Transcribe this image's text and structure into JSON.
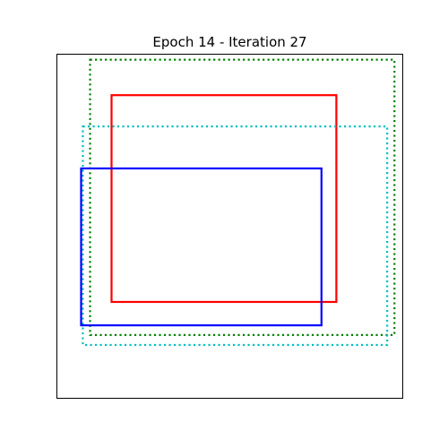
{
  "chart_data": {
    "type": "rectangles",
    "title": "Epoch 14 - Iteration 27",
    "xlabel": "",
    "ylabel": "",
    "xlim": [
      0,
      1
    ],
    "ylim": [
      0,
      1
    ],
    "grid": false,
    "axis_ticks": false,
    "boxes": [
      {
        "x0": 0.096,
        "y0": 0.184,
        "x1": 0.976,
        "y1": 0.984,
        "color": "#008000",
        "style": "dotted"
      },
      {
        "x0": 0.158,
        "y0": 0.28,
        "x1": 0.808,
        "y1": 0.881,
        "color": "#ff0000",
        "style": "solid"
      },
      {
        "x0": 0.075,
        "y0": 0.155,
        "x1": 0.955,
        "y1": 0.79,
        "color": "#00bfbf",
        "style": "dotted"
      },
      {
        "x0": 0.07,
        "y0": 0.212,
        "x1": 0.765,
        "y1": 0.668,
        "color": "#0000ff",
        "style": "solid"
      }
    ]
  }
}
